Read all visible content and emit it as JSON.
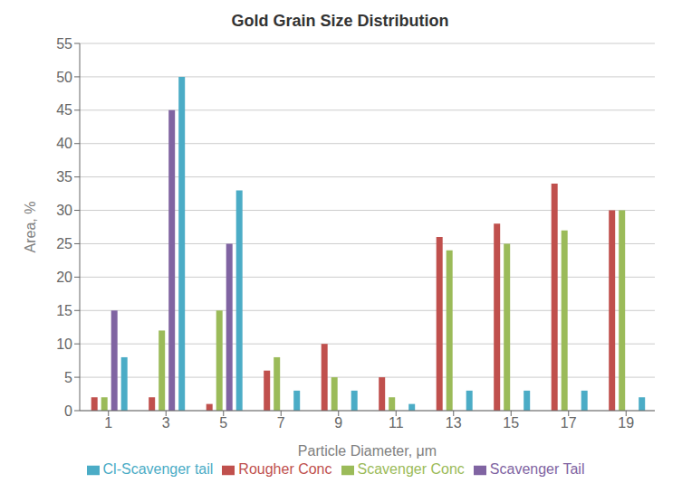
{
  "chart_data": {
    "type": "bar",
    "title": "Gold Grain Size Distribution",
    "xlabel": "Particle Diameter, μm",
    "ylabel": "Area, %",
    "categories": [
      1,
      3,
      5,
      7,
      9,
      11,
      13,
      15,
      17,
      19
    ],
    "series": [
      {
        "name": "Rougher Conc",
        "color": "#C0504D",
        "values": [
          2,
          2,
          1,
          6,
          10,
          5,
          26,
          28,
          34,
          30
        ]
      },
      {
        "name": "Scavenger Conc",
        "color": "#9BBB59",
        "values": [
          2,
          12,
          15,
          8,
          5,
          2,
          24,
          25,
          27,
          30
        ]
      },
      {
        "name": "Scavenger Tail",
        "color": "#8064A2",
        "values": [
          15,
          45,
          25,
          0,
          0,
          0,
          0,
          0,
          0,
          0
        ]
      },
      {
        "name": "Cl-Scavenger tail",
        "color": "#4BACC6",
        "values": [
          8,
          50,
          33,
          3,
          3,
          1,
          3,
          3,
          3,
          2
        ]
      }
    ],
    "ylim": [
      0,
      55
    ],
    "yticks": [
      0,
      5,
      10,
      15,
      20,
      25,
      30,
      35,
      40,
      45,
      50,
      55
    ],
    "grid": true,
    "legend": "bottom"
  }
}
